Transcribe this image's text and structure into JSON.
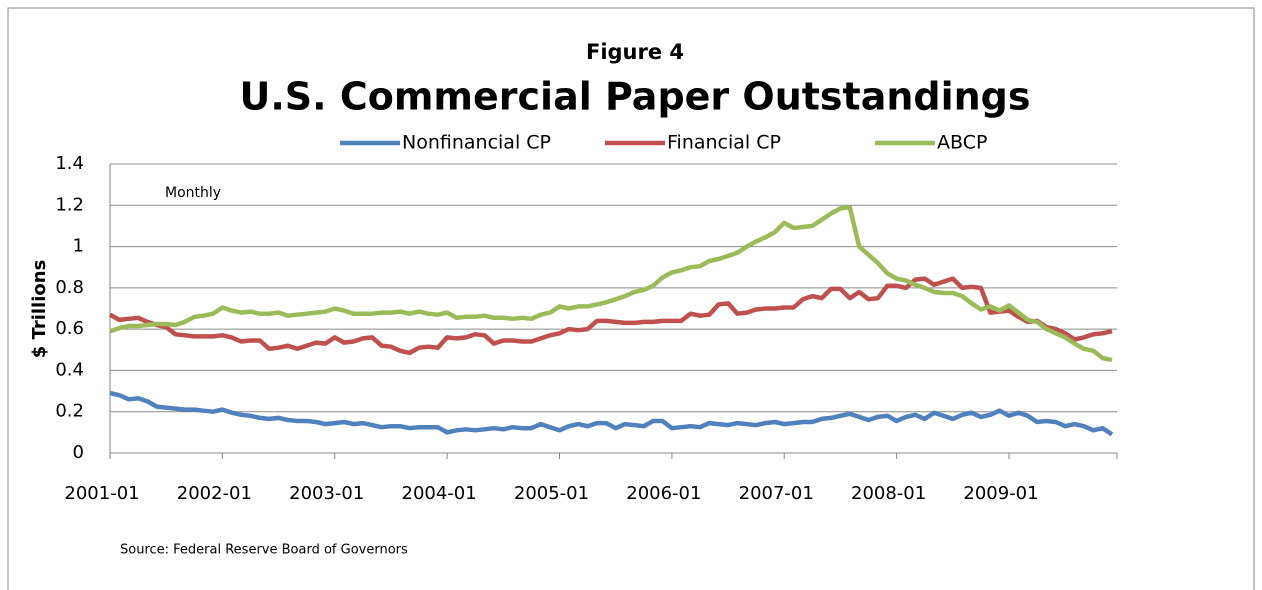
{
  "chart_data": {
    "type": "line",
    "suptitle": "Figure 4",
    "title": "U.S. Commercial Paper Outstandings",
    "ylabel": "$ Trillions",
    "annotations": [
      "Monthly",
      "Source: Federal Reserve Board of Governors"
    ],
    "x": [
      "2001-01",
      "2001-02",
      "2001-03",
      "2001-04",
      "2001-05",
      "2001-06",
      "2001-07",
      "2001-08",
      "2001-09",
      "2001-10",
      "2001-11",
      "2001-12",
      "2002-01",
      "2002-02",
      "2002-03",
      "2002-04",
      "2002-05",
      "2002-06",
      "2002-07",
      "2002-08",
      "2002-09",
      "2002-10",
      "2002-11",
      "2002-12",
      "2003-01",
      "2003-02",
      "2003-03",
      "2003-04",
      "2003-05",
      "2003-06",
      "2003-07",
      "2003-08",
      "2003-09",
      "2003-10",
      "2003-11",
      "2003-12",
      "2004-01",
      "2004-02",
      "2004-03",
      "2004-04",
      "2004-05",
      "2004-06",
      "2004-07",
      "2004-08",
      "2004-09",
      "2004-10",
      "2004-11",
      "2004-12",
      "2005-01",
      "2005-02",
      "2005-03",
      "2005-04",
      "2005-05",
      "2005-06",
      "2005-07",
      "2005-08",
      "2005-09",
      "2005-10",
      "2005-11",
      "2005-12",
      "2006-01",
      "2006-02",
      "2006-03",
      "2006-04",
      "2006-05",
      "2006-06",
      "2006-07",
      "2006-08",
      "2006-09",
      "2006-10",
      "2006-11",
      "2006-12",
      "2007-01",
      "2007-02",
      "2007-03",
      "2007-04",
      "2007-05",
      "2007-06",
      "2007-07",
      "2007-08",
      "2007-09",
      "2007-10",
      "2007-11",
      "2007-12",
      "2008-01",
      "2008-02",
      "2008-03",
      "2008-04",
      "2008-05",
      "2008-06",
      "2008-07",
      "2008-08",
      "2008-09",
      "2008-10",
      "2008-11",
      "2008-12",
      "2009-01",
      "2009-02",
      "2009-03",
      "2009-04",
      "2009-05",
      "2009-06",
      "2009-07",
      "2009-08",
      "2009-09",
      "2009-10",
      "2009-11",
      "2009-12"
    ],
    "xticks": [
      "2001-01",
      "2002-01",
      "2003-01",
      "2004-01",
      "2005-01",
      "2006-01",
      "2007-01",
      "2008-01",
      "2009-01"
    ],
    "ylim": [
      0,
      1.4
    ],
    "yticks": [
      0,
      0.2,
      0.4,
      0.6,
      0.8,
      1,
      1.2,
      1.4
    ],
    "grid": true,
    "series": [
      {
        "name": "Nonfinancial CP",
        "color": "#4f81bd",
        "values": [
          0.29,
          0.28,
          0.26,
          0.265,
          0.25,
          0.225,
          0.22,
          0.215,
          0.21,
          0.21,
          0.205,
          0.2,
          0.21,
          0.195,
          0.185,
          0.18,
          0.17,
          0.165,
          0.17,
          0.16,
          0.155,
          0.155,
          0.15,
          0.14,
          0.145,
          0.15,
          0.14,
          0.145,
          0.135,
          0.125,
          0.13,
          0.13,
          0.12,
          0.125,
          0.125,
          0.125,
          0.1,
          0.11,
          0.115,
          0.11,
          0.115,
          0.12,
          0.115,
          0.125,
          0.12,
          0.12,
          0.14,
          0.125,
          0.11,
          0.13,
          0.14,
          0.13,
          0.145,
          0.145,
          0.12,
          0.14,
          0.135,
          0.13,
          0.155,
          0.155,
          0.12,
          0.125,
          0.13,
          0.125,
          0.145,
          0.14,
          0.135,
          0.145,
          0.14,
          0.135,
          0.145,
          0.15,
          0.14,
          0.145,
          0.15,
          0.15,
          0.165,
          0.17,
          0.18,
          0.19,
          0.175,
          0.16,
          0.175,
          0.18,
          0.155,
          0.175,
          0.185,
          0.165,
          0.195,
          0.18,
          0.165,
          0.185,
          0.195,
          0.175,
          0.185,
          0.205,
          0.18,
          0.195,
          0.18,
          0.15,
          0.155,
          0.15,
          0.13,
          0.14,
          0.13,
          0.11,
          0.12,
          0.09
        ]
      },
      {
        "name": "Financial CP",
        "color": "#c0504d",
        "values": [
          0.67,
          0.645,
          0.65,
          0.655,
          0.635,
          0.62,
          0.61,
          0.575,
          0.57,
          0.565,
          0.565,
          0.565,
          0.57,
          0.56,
          0.54,
          0.545,
          0.545,
          0.505,
          0.51,
          0.52,
          0.505,
          0.52,
          0.535,
          0.53,
          0.56,
          0.535,
          0.54,
          0.555,
          0.56,
          0.52,
          0.515,
          0.495,
          0.485,
          0.51,
          0.515,
          0.51,
          0.56,
          0.555,
          0.56,
          0.575,
          0.57,
          0.53,
          0.545,
          0.545,
          0.54,
          0.54,
          0.555,
          0.57,
          0.58,
          0.6,
          0.595,
          0.6,
          0.64,
          0.64,
          0.635,
          0.63,
          0.63,
          0.635,
          0.635,
          0.64,
          0.64,
          0.64,
          0.675,
          0.665,
          0.67,
          0.72,
          0.725,
          0.675,
          0.68,
          0.695,
          0.7,
          0.7,
          0.705,
          0.705,
          0.745,
          0.76,
          0.75,
          0.795,
          0.795,
          0.75,
          0.78,
          0.745,
          0.75,
          0.81,
          0.81,
          0.8,
          0.84,
          0.845,
          0.815,
          0.83,
          0.845,
          0.8,
          0.805,
          0.8,
          0.68,
          0.685,
          0.69,
          0.66,
          0.635,
          0.64,
          0.61,
          0.6,
          0.58,
          0.55,
          0.56,
          0.575,
          0.58,
          0.59
        ]
      },
      {
        "name": "ABCP",
        "color": "#9bbb59",
        "values": [
          0.59,
          0.605,
          0.615,
          0.615,
          0.62,
          0.625,
          0.625,
          0.62,
          0.635,
          0.66,
          0.665,
          0.675,
          0.705,
          0.69,
          0.68,
          0.685,
          0.675,
          0.675,
          0.68,
          0.665,
          0.67,
          0.675,
          0.68,
          0.685,
          0.7,
          0.69,
          0.675,
          0.675,
          0.675,
          0.68,
          0.68,
          0.685,
          0.675,
          0.685,
          0.675,
          0.67,
          0.68,
          0.655,
          0.66,
          0.66,
          0.665,
          0.655,
          0.655,
          0.65,
          0.655,
          0.65,
          0.67,
          0.68,
          0.71,
          0.7,
          0.71,
          0.71,
          0.72,
          0.73,
          0.745,
          0.76,
          0.78,
          0.79,
          0.81,
          0.85,
          0.875,
          0.885,
          0.9,
          0.905,
          0.93,
          0.94,
          0.955,
          0.97,
          1.0,
          1.025,
          1.045,
          1.07,
          1.115,
          1.09,
          1.095,
          1.1,
          1.13,
          1.16,
          1.185,
          1.19,
          1.0,
          0.96,
          0.92,
          0.87,
          0.845,
          0.835,
          0.815,
          0.8,
          0.78,
          0.775,
          0.775,
          0.76,
          0.725,
          0.695,
          0.71,
          0.69,
          0.715,
          0.68,
          0.645,
          0.635,
          0.6,
          0.58,
          0.56,
          0.53,
          0.505,
          0.495,
          0.46,
          0.45
        ]
      }
    ]
  }
}
